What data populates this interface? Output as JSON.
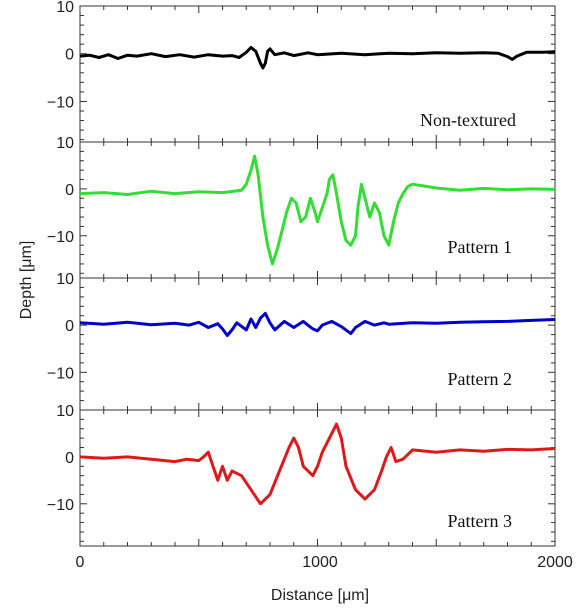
{
  "chart_data": {
    "type": "line",
    "xlabel": "Distance [μm]",
    "ylabel": "Depth [μm]",
    "xlim": [
      0,
      2000
    ],
    "x_ticks": [
      "0",
      "1000",
      "2000"
    ],
    "grid": false,
    "panels": [
      {
        "label": "Non-textured",
        "color": "#000000",
        "ylim": [
          -18.5,
          10
        ],
        "y_ticks": [
          "10",
          "0",
          "−10"
        ],
        "points": [
          [
            0,
            -0.5
          ],
          [
            40,
            -0.3
          ],
          [
            80,
            -0.8
          ],
          [
            120,
            -0.2
          ],
          [
            160,
            -1
          ],
          [
            200,
            -0.3
          ],
          [
            240,
            -0.5
          ],
          [
            300,
            0
          ],
          [
            360,
            -0.6
          ],
          [
            420,
            -0.2
          ],
          [
            480,
            -0.7
          ],
          [
            540,
            -0.2
          ],
          [
            600,
            -0.5
          ],
          [
            640,
            -0.4
          ],
          [
            670,
            -0.8
          ],
          [
            700,
            0.3
          ],
          [
            720,
            1.3
          ],
          [
            740,
            0.5
          ],
          [
            760,
            -2
          ],
          [
            770,
            -3
          ],
          [
            780,
            -2
          ],
          [
            790,
            0.5
          ],
          [
            800,
            1
          ],
          [
            820,
            -0.2
          ],
          [
            860,
            0.2
          ],
          [
            900,
            -0.4
          ],
          [
            960,
            0.2
          ],
          [
            1000,
            -0.2
          ],
          [
            1100,
            0.1
          ],
          [
            1200,
            -0.2
          ],
          [
            1300,
            0.1
          ],
          [
            1400,
            0
          ],
          [
            1500,
            0.2
          ],
          [
            1600,
            0.1
          ],
          [
            1700,
            0.2
          ],
          [
            1760,
            0.1
          ],
          [
            1800,
            -0.6
          ],
          [
            1820,
            -1.2
          ],
          [
            1840,
            -0.5
          ],
          [
            1880,
            0.3
          ],
          [
            1950,
            0.3
          ],
          [
            2000,
            0.4
          ]
        ]
      },
      {
        "label": "Pattern 1",
        "color": "#33dd33",
        "ylim": [
          -19,
          10
        ],
        "y_ticks": [
          "10",
          "0",
          "−10"
        ],
        "points": [
          [
            0,
            -1
          ],
          [
            100,
            -0.8
          ],
          [
            200,
            -1.2
          ],
          [
            300,
            -0.5
          ],
          [
            400,
            -1
          ],
          [
            500,
            -0.6
          ],
          [
            600,
            -0.8
          ],
          [
            680,
            -0.3
          ],
          [
            700,
            1
          ],
          [
            720,
            4
          ],
          [
            735,
            7
          ],
          [
            750,
            3
          ],
          [
            770,
            -6
          ],
          [
            790,
            -12
          ],
          [
            810,
            -16
          ],
          [
            830,
            -13
          ],
          [
            850,
            -9
          ],
          [
            870,
            -5
          ],
          [
            890,
            -2
          ],
          [
            910,
            -3
          ],
          [
            930,
            -7
          ],
          [
            950,
            -6
          ],
          [
            970,
            -2
          ],
          [
            990,
            -5
          ],
          [
            1000,
            -7
          ],
          [
            1020,
            -4
          ],
          [
            1040,
            -1
          ],
          [
            1050,
            2
          ],
          [
            1065,
            3
          ],
          [
            1080,
            -1
          ],
          [
            1100,
            -7
          ],
          [
            1120,
            -11
          ],
          [
            1140,
            -12
          ],
          [
            1160,
            -10
          ],
          [
            1170,
            -4
          ],
          [
            1185,
            1
          ],
          [
            1200,
            -2
          ],
          [
            1220,
            -6
          ],
          [
            1240,
            -3
          ],
          [
            1260,
            -5
          ],
          [
            1280,
            -10
          ],
          [
            1300,
            -12
          ],
          [
            1320,
            -7
          ],
          [
            1340,
            -3
          ],
          [
            1360,
            -1
          ],
          [
            1380,
            0.5
          ],
          [
            1400,
            1
          ],
          [
            1500,
            0.2
          ],
          [
            1600,
            -0.3
          ],
          [
            1700,
            0.1
          ],
          [
            1800,
            -0.2
          ],
          [
            1900,
            0
          ],
          [
            2000,
            -0.1
          ]
        ]
      },
      {
        "label": "Pattern 2",
        "color": "#0000cc",
        "ylim": [
          -18,
          10
        ],
        "y_ticks": [
          "10",
          "0",
          "−10"
        ],
        "points": [
          [
            0,
            0.5
          ],
          [
            100,
            0.2
          ],
          [
            200,
            0.6
          ],
          [
            300,
            0.1
          ],
          [
            400,
            0.4
          ],
          [
            460,
            0
          ],
          [
            500,
            0.6
          ],
          [
            540,
            -0.5
          ],
          [
            580,
            0.3
          ],
          [
            600,
            -0.8
          ],
          [
            620,
            -2.2
          ],
          [
            640,
            -1
          ],
          [
            660,
            0.5
          ],
          [
            700,
            -1
          ],
          [
            720,
            1.3
          ],
          [
            740,
            -0.5
          ],
          [
            760,
            1.5
          ],
          [
            780,
            2.5
          ],
          [
            800,
            0.5
          ],
          [
            820,
            -1
          ],
          [
            860,
            0.8
          ],
          [
            900,
            -0.5
          ],
          [
            940,
            0.8
          ],
          [
            980,
            -0.8
          ],
          [
            1000,
            -1.2
          ],
          [
            1020,
            0
          ],
          [
            1060,
            0.8
          ],
          [
            1100,
            -0.3
          ],
          [
            1140,
            -1.8
          ],
          [
            1160,
            -0.5
          ],
          [
            1200,
            0.8
          ],
          [
            1240,
            0
          ],
          [
            1280,
            0.5
          ],
          [
            1300,
            0.2
          ],
          [
            1400,
            0.5
          ],
          [
            1500,
            0.4
          ],
          [
            1600,
            0.6
          ],
          [
            1700,
            0.7
          ],
          [
            1800,
            0.8
          ],
          [
            1900,
            1
          ],
          [
            2000,
            1.2
          ]
        ]
      },
      {
        "label": "Pattern 3",
        "color": "#dd1a1a",
        "ylim": [
          -19,
          10
        ],
        "y_ticks": [
          "10",
          "0",
          "−10"
        ],
        "points": [
          [
            0,
            0
          ],
          [
            100,
            -0.3
          ],
          [
            200,
            0
          ],
          [
            300,
            -0.5
          ],
          [
            400,
            -1
          ],
          [
            450,
            -0.5
          ],
          [
            500,
            -0.8
          ],
          [
            520,
            0
          ],
          [
            540,
            1
          ],
          [
            560,
            -2
          ],
          [
            580,
            -5
          ],
          [
            600,
            -2
          ],
          [
            620,
            -5
          ],
          [
            640,
            -3
          ],
          [
            680,
            -4
          ],
          [
            720,
            -7
          ],
          [
            760,
            -10
          ],
          [
            800,
            -8
          ],
          [
            840,
            -3
          ],
          [
            880,
            2
          ],
          [
            900,
            4
          ],
          [
            920,
            2
          ],
          [
            940,
            -2
          ],
          [
            980,
            -4
          ],
          [
            1000,
            -2
          ],
          [
            1020,
            1
          ],
          [
            1060,
            5
          ],
          [
            1080,
            7
          ],
          [
            1100,
            4
          ],
          [
            1120,
            -2
          ],
          [
            1160,
            -7
          ],
          [
            1200,
            -9
          ],
          [
            1240,
            -7
          ],
          [
            1270,
            -3
          ],
          [
            1290,
            0
          ],
          [
            1310,
            2
          ],
          [
            1330,
            -1
          ],
          [
            1360,
            -0.5
          ],
          [
            1400,
            1.5
          ],
          [
            1500,
            1
          ],
          [
            1600,
            1.5
          ],
          [
            1700,
            1.2
          ],
          [
            1800,
            1.6
          ],
          [
            1900,
            1.5
          ],
          [
            2000,
            1.8
          ]
        ]
      }
    ]
  }
}
